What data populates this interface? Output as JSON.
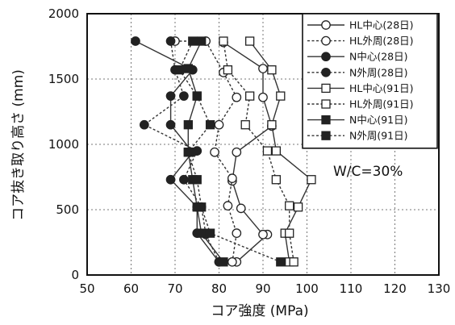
{
  "chart_data": {
    "type": "line",
    "xlabel": "コア強度  (MPa)",
    "ylabel": "コア抜き取り高さ  (mm)",
    "xlim": [
      50,
      130
    ],
    "ylim": [
      0,
      2000
    ],
    "xticks": [
      50,
      60,
      70,
      80,
      90,
      100,
      110,
      120,
      130
    ],
    "yticks": [
      0,
      500,
      1000,
      1500,
      2000
    ],
    "grid": true,
    "legend_position": "top-right",
    "annotation": "W/C=30%",
    "series": [
      {
        "name": "HL中心(28日)",
        "marker": "circle-open",
        "line": "solid",
        "points": [
          [
            84,
            100
          ],
          [
            91,
            310
          ],
          [
            90,
            310
          ],
          [
            85,
            510
          ],
          [
            83,
            720
          ],
          [
            84,
            940
          ],
          [
            92,
            1140
          ],
          [
            90,
            1360
          ],
          [
            90,
            1580
          ],
          [
            81,
            1780
          ]
        ]
      },
      {
        "name": "HL外周(28日)",
        "marker": "circle-open",
        "line": "dashed",
        "points": [
          [
            70,
            1790
          ],
          [
            77,
            1790
          ],
          [
            81,
            1550
          ],
          [
            84,
            1360
          ],
          [
            80,
            1150
          ],
          [
            79,
            940
          ],
          [
            83,
            740
          ],
          [
            82,
            530
          ],
          [
            84,
            320
          ],
          [
            83,
            100
          ]
        ]
      },
      {
        "name": "N中心(28日)",
        "marker": "circle-filled",
        "line": "solid",
        "points": [
          [
            61,
            1790
          ],
          [
            74,
            1570
          ],
          [
            69,
            1370
          ],
          [
            69,
            1150
          ],
          [
            74,
            940
          ],
          [
            69,
            730
          ],
          [
            75,
            520
          ],
          [
            75,
            320
          ],
          [
            80,
            100
          ]
        ]
      },
      {
        "name": "N外周(28日)",
        "marker": "circle-filled",
        "line": "dashed",
        "points": [
          [
            69,
            1790
          ],
          [
            70,
            1570
          ],
          [
            72,
            1370
          ],
          [
            63,
            1150
          ],
          [
            75,
            950
          ],
          [
            72,
            730
          ],
          [
            76,
            520
          ],
          [
            77,
            310
          ],
          [
            80,
            100
          ]
        ]
      },
      {
        "name": "HL中心(91日)",
        "marker": "square-open",
        "line": "solid",
        "points": [
          [
            87,
            1790
          ],
          [
            92,
            1570
          ],
          [
            94,
            1370
          ],
          [
            92,
            1150
          ],
          [
            93,
            950
          ],
          [
            101,
            730
          ],
          [
            98,
            520
          ],
          [
            95,
            320
          ],
          [
            96,
            100
          ]
        ]
      },
      {
        "name": "HL外周(91日)",
        "marker": "square-open",
        "line": "dashed",
        "points": [
          [
            81,
            1790
          ],
          [
            82,
            1570
          ],
          [
            87,
            1370
          ],
          [
            86,
            1150
          ],
          [
            91,
            950
          ],
          [
            93,
            730
          ],
          [
            96,
            530
          ],
          [
            96,
            320
          ],
          [
            97,
            100
          ]
        ]
      },
      {
        "name": "N中心(91日)",
        "marker": "square-filled",
        "line": "solid",
        "points": [
          [
            76,
            1790
          ],
          [
            73,
            1580
          ],
          [
            75,
            1370
          ],
          [
            73,
            1150
          ],
          [
            73,
            940
          ],
          [
            74,
            730
          ],
          [
            75,
            520
          ],
          [
            76,
            320
          ],
          [
            81,
            100
          ]
        ]
      },
      {
        "name": "N外周(91日)",
        "marker": "square-filled",
        "line": "dashed",
        "points": [
          [
            74,
            1790
          ],
          [
            71,
            1570
          ],
          [
            75,
            1370
          ],
          [
            78,
            1150
          ],
          [
            73,
            940
          ],
          [
            75,
            730
          ],
          [
            76,
            520
          ],
          [
            78,
            320
          ],
          [
            94,
            100
          ]
        ]
      }
    ]
  }
}
